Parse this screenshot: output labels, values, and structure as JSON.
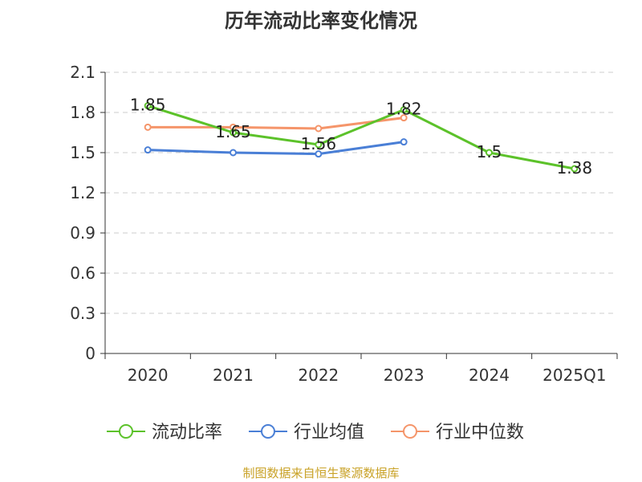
{
  "chart_data": {
    "type": "line",
    "title": "历年流动比率变化情况",
    "categories": [
      "2020",
      "2021",
      "2022",
      "2023",
      "2024",
      "2025Q1"
    ],
    "ylim": [
      0,
      2.1
    ],
    "yticks": [
      "0",
      "0.3",
      "0.6",
      "0.9",
      "1.2",
      "1.5",
      "1.8",
      "2.1"
    ],
    "grid": true,
    "legend_position": "bottom",
    "series": [
      {
        "name": "流动比率",
        "color": "#5cc22a",
        "values": [
          1.85,
          1.65,
          1.56,
          1.82,
          1.5,
          1.38
        ],
        "labels": [
          "1.85",
          "1.65",
          "1.56",
          "1.82",
          "1.5",
          "1.38"
        ]
      },
      {
        "name": "行业均值",
        "color": "#4a7fd6",
        "values": [
          1.52,
          1.5,
          1.49,
          1.58,
          null,
          null
        ]
      },
      {
        "name": "行业中位数",
        "color": "#f5956a",
        "values": [
          1.69,
          1.69,
          1.68,
          1.76,
          null,
          null
        ]
      }
    ]
  },
  "source": "制图数据来自恒生聚源数据库"
}
